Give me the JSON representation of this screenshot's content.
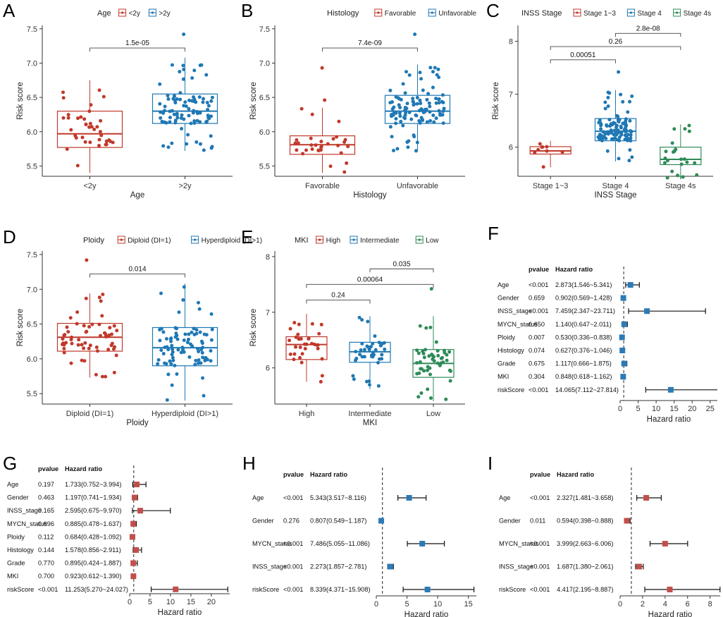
{
  "colors": {
    "red": "#c0392b",
    "blue": "#1f78b4",
    "green": "#2e8b57",
    "fp_blue": "#2c7bb6",
    "fp_red": "#c0504d"
  },
  "chart_data": [
    {
      "id": "A",
      "type": "box",
      "letter": "A",
      "legend_title": "Age",
      "legend": [
        "<2y",
        ">2y"
      ],
      "categories": [
        "<2y",
        ">2y"
      ],
      "xlabel": "Age",
      "ylabel": "Risk score",
      "ylim": [
        5.35,
        7.55
      ],
      "yticks": [
        "5.5",
        "6.0",
        "6.5",
        "7.0",
        "7.5"
      ],
      "ytick_values": [
        5.5,
        6.0,
        6.5,
        7.0,
        7.5
      ],
      "boxes": [
        {
          "q1": 5.77,
          "med": 5.97,
          "q3": 6.3,
          "lo": 5.4,
          "hi": 6.75,
          "n": 38,
          "color": "red"
        },
        {
          "q1": 6.12,
          "med": 6.3,
          "q3": 6.55,
          "lo": 5.72,
          "hi": 7.08,
          "outliers": [
            7.42
          ],
          "n": 92,
          "color": "blue"
        }
      ],
      "comparisons": [
        {
          "from": 0,
          "to": 1,
          "label": "1.5e-05",
          "y": 7.22
        }
      ]
    },
    {
      "id": "B",
      "type": "box",
      "letter": "B",
      "legend_title": "Histology",
      "legend": [
        "Favorable",
        "Unfavorable"
      ],
      "categories": [
        "Favorable",
        "Unfavorable"
      ],
      "xlabel": "Histology",
      "ylabel": "Risk score",
      "ylim": [
        5.35,
        7.55
      ],
      "yticks": [
        "5.5",
        "6.0",
        "6.5",
        "7.0",
        "7.5"
      ],
      "ytick_values": [
        5.5,
        6.0,
        6.5,
        7.0,
        7.5
      ],
      "boxes": [
        {
          "q1": 5.67,
          "med": 5.81,
          "q3": 5.94,
          "lo": 5.4,
          "hi": 6.35,
          "outliers": [
            6.46,
            6.93
          ],
          "n": 30,
          "color": "red"
        },
        {
          "q1": 6.12,
          "med": 6.3,
          "q3": 6.53,
          "lo": 5.72,
          "hi": 6.98,
          "outliers": [
            7.42
          ],
          "n": 105,
          "color": "blue"
        }
      ],
      "comparisons": [
        {
          "from": 0,
          "to": 1,
          "label": "7.4e-09",
          "y": 7.22
        }
      ]
    },
    {
      "id": "C",
      "type": "box",
      "letter": "C",
      "legend_title": "INSS Stage",
      "legend": [
        "Stage 1~3",
        "Stage 4",
        "Stage 4s"
      ],
      "categories": [
        "Stage 1~3",
        "Stage 4",
        "Stage 4s"
      ],
      "xlabel": "INSS Stage",
      "ylabel": "Risk score",
      "ylim": [
        5.45,
        8.3
      ],
      "yticks": [
        "6",
        "7",
        "8"
      ],
      "ytick_values": [
        6,
        7,
        8
      ],
      "boxes": [
        {
          "q1": 5.87,
          "med": 5.93,
          "q3": 6.01,
          "lo": 5.62,
          "hi": 6.12,
          "n": 9,
          "color": "red"
        },
        {
          "q1": 6.12,
          "med": 6.3,
          "q3": 6.54,
          "lo": 5.73,
          "hi": 7.08,
          "outliers": [
            7.42
          ],
          "n": 100,
          "color": "blue"
        },
        {
          "q1": 5.67,
          "med": 5.77,
          "q3": 6.0,
          "lo": 5.4,
          "hi": 6.43,
          "n": 22,
          "color": "green"
        }
      ],
      "comparisons": [
        {
          "from": 0,
          "to": 1,
          "label": "0.00051",
          "y": 7.65
        },
        {
          "from": 0,
          "to": 2,
          "label": "0.26",
          "y": 7.9
        },
        {
          "from": 1,
          "to": 2,
          "label": "2.8e-08",
          "y": 8.15
        }
      ]
    },
    {
      "id": "D",
      "type": "box",
      "letter": "D",
      "legend_title": "Ploidy",
      "legend": [
        "Diploid (DI=1)",
        "Hyperdiploid (DI>1)"
      ],
      "categories": [
        "Diploid (DI=1)",
        "Hyperdiploid (DI>1)"
      ],
      "xlabel": "Ploidy",
      "ylabel": "Risk score",
      "ylim": [
        5.35,
        7.55
      ],
      "yticks": [
        "5.5",
        "6.0",
        "6.5",
        "7.0",
        "7.5"
      ],
      "ytick_values": [
        5.5,
        6.0,
        6.5,
        7.0,
        7.5
      ],
      "boxes": [
        {
          "q1": 6.11,
          "med": 6.31,
          "q3": 6.51,
          "lo": 5.73,
          "hi": 6.94,
          "outliers": [
            7.42
          ],
          "n": 60,
          "color": "red"
        },
        {
          "q1": 5.9,
          "med": 6.16,
          "q3": 6.45,
          "lo": 5.4,
          "hi": 7.08,
          "n": 88,
          "color": "blue"
        }
      ],
      "comparisons": [
        {
          "from": 0,
          "to": 1,
          "label": "0.014",
          "y": 7.22
        }
      ]
    },
    {
      "id": "E",
      "type": "box",
      "letter": "E",
      "legend_title": "MKI",
      "legend": [
        "High",
        "Intermediate",
        "Low"
      ],
      "categories": [
        "High",
        "Intermediate",
        "Low"
      ],
      "xlabel": "MKI",
      "ylabel": "Risk score",
      "ylim": [
        5.35,
        8.1
      ],
      "yticks": [
        "6",
        "7",
        "8"
      ],
      "ytick_values": [
        6,
        7,
        8
      ],
      "boxes": [
        {
          "q1": 6.15,
          "med": 6.42,
          "q3": 6.56,
          "lo": 5.75,
          "hi": 6.97,
          "n": 33,
          "color": "red"
        },
        {
          "q1": 6.1,
          "med": 6.29,
          "q3": 6.46,
          "lo": 5.62,
          "hi": 6.93,
          "n": 40,
          "color": "blue"
        },
        {
          "q1": 5.83,
          "med": 6.08,
          "q3": 6.33,
          "lo": 5.4,
          "hi": 6.93,
          "outliers": [
            7.42
          ],
          "n": 48,
          "color": "green"
        }
      ],
      "comparisons": [
        {
          "from": 0,
          "to": 1,
          "label": "0.24",
          "y": 7.22
        },
        {
          "from": 0,
          "to": 2,
          "label": "0.00064",
          "y": 7.5
        },
        {
          "from": 1,
          "to": 2,
          "label": "0.035",
          "y": 7.78
        }
      ]
    }
  ],
  "forest_plots": [
    {
      "id": "F",
      "letter": "F",
      "color": "fp_blue",
      "header_pvalue": "pvalue",
      "header_hr": "Hazard ratio",
      "xlabel": "Hazard ratio",
      "xlim": [
        0,
        27
      ],
      "xticks": [
        "0",
        "5",
        "10",
        "15",
        "20",
        "25"
      ],
      "xtick_values": [
        0,
        5,
        10,
        15,
        20,
        25
      ],
      "rows": [
        {
          "name": "Age",
          "p": "<0.001",
          "hr_text": "2.873(1.546~5.341)",
          "hr": 2.873,
          "lo": 1.546,
          "hi": 5.341
        },
        {
          "name": "Gender",
          "p": "0.659",
          "hr_text": "0.902(0.569~1.428)",
          "hr": 0.902,
          "lo": 0.569,
          "hi": 1.428
        },
        {
          "name": "INSS_stage",
          "p": "<0.001",
          "hr_text": "7.459(2.347~23.711)",
          "hr": 7.459,
          "lo": 2.347,
          "hi": 23.711
        },
        {
          "name": "MYCN_status",
          "p": "0.650",
          "hr_text": "1.140(0.647~2.011)",
          "hr": 1.14,
          "lo": 0.647,
          "hi": 2.011
        },
        {
          "name": "Ploidy",
          "p": "0.007",
          "hr_text": "0.530(0.336~0.838)",
          "hr": 0.53,
          "lo": 0.336,
          "hi": 0.838
        },
        {
          "name": "Histology",
          "p": "0.074",
          "hr_text": "0.627(0.376~1.046)",
          "hr": 0.627,
          "lo": 0.376,
          "hi": 1.046
        },
        {
          "name": "Grade",
          "p": "0.675",
          "hr_text": "1.117(0.666~1.875)",
          "hr": 1.117,
          "lo": 0.666,
          "hi": 1.875
        },
        {
          "name": "MKI",
          "p": "0.304",
          "hr_text": "0.848(0.618~1.162)",
          "hr": 0.848,
          "lo": 0.618,
          "hi": 1.162
        },
        {
          "name": "riskScore",
          "p": "<0.001",
          "hr_text": "14.065(7.112~27.814)",
          "hr": 14.065,
          "lo": 7.112,
          "hi": 27.814
        }
      ]
    },
    {
      "id": "G",
      "letter": "G",
      "color": "fp_red",
      "header_pvalue": "pvalue",
      "header_hr": "Hazard ratio",
      "xlabel": "Hazard ratio",
      "xlim": [
        0,
        24.5
      ],
      "xticks": [
        "0",
        "5",
        "10",
        "15",
        "20"
      ],
      "xtick_values": [
        0,
        5,
        10,
        15,
        20
      ],
      "rows": [
        {
          "name": "Age",
          "p": "0.197",
          "hr_text": "1.733(0.752~3.994)",
          "hr": 1.733,
          "lo": 0.752,
          "hi": 3.994
        },
        {
          "name": "Gender",
          "p": "0.463",
          "hr_text": "1.197(0.741~1.934)",
          "hr": 1.197,
          "lo": 0.741,
          "hi": 1.934
        },
        {
          "name": "INSS_stage",
          "p": "0.165",
          "hr_text": "2.595(0.675~9.970)",
          "hr": 2.595,
          "lo": 0.675,
          "hi": 9.97
        },
        {
          "name": "MYCN_status",
          "p": "0.696",
          "hr_text": "0.885(0.478~1.637)",
          "hr": 0.885,
          "lo": 0.478,
          "hi": 1.637
        },
        {
          "name": "Ploidy",
          "p": "0.112",
          "hr_text": "0.684(0.428~1.092)",
          "hr": 0.684,
          "lo": 0.428,
          "hi": 1.092
        },
        {
          "name": "Histology",
          "p": "0.144",
          "hr_text": "1.578(0.856~2.911)",
          "hr": 1.578,
          "lo": 0.856,
          "hi": 2.911
        },
        {
          "name": "Grade",
          "p": "0.770",
          "hr_text": "0.895(0.424~1.887)",
          "hr": 0.895,
          "lo": 0.424,
          "hi": 1.887
        },
        {
          "name": "MKI",
          "p": "0.700",
          "hr_text": "0.923(0.612~1.390)",
          "hr": 0.923,
          "lo": 0.612,
          "hi": 1.39
        },
        {
          "name": "riskScore",
          "p": "<0.001",
          "hr_text": "11.253(5.270~24.027)",
          "hr": 11.253,
          "lo": 5.27,
          "hi": 24.027
        }
      ]
    },
    {
      "id": "H",
      "letter": "H",
      "color": "fp_blue",
      "header_pvalue": "pvalue",
      "header_hr": "Hazard ratio",
      "xlabel": "Hazard ratio",
      "xlim": [
        0,
        16.3
      ],
      "xticks": [
        "0",
        "5",
        "10",
        "15"
      ],
      "xtick_values": [
        0,
        5,
        10,
        15
      ],
      "rows": [
        {
          "name": "Age",
          "p": "<0.001",
          "hr_text": "5.343(3.517~8.116)",
          "hr": 5.343,
          "lo": 3.517,
          "hi": 8.116
        },
        {
          "name": "Gender",
          "p": "0.276",
          "hr_text": "0.807(0.549~1.187)",
          "hr": 0.807,
          "lo": 0.549,
          "hi": 1.187
        },
        {
          "name": "MYCN_status",
          "p": "<0.001",
          "hr_text": "7.486(5.055~11.086)",
          "hr": 7.486,
          "lo": 5.055,
          "hi": 11.086
        },
        {
          "name": "INSS_stage",
          "p": "<0.001",
          "hr_text": "2.273(1.857~2.781)",
          "hr": 2.273,
          "lo": 1.857,
          "hi": 2.781
        },
        {
          "name": "riskScore",
          "p": "<0.001",
          "hr_text": "8.339(4.371~15.908)",
          "hr": 8.339,
          "lo": 4.371,
          "hi": 15.908
        }
      ]
    },
    {
      "id": "I",
      "letter": "I",
      "color": "fp_red",
      "header_pvalue": "pvalue",
      "header_hr": "Hazard ratio",
      "xlabel": "Hazard ratio",
      "xlim": [
        0,
        8.9
      ],
      "xticks": [
        "0",
        "2",
        "4",
        "6",
        "8"
      ],
      "xtick_values": [
        0,
        2,
        4,
        6,
        8
      ],
      "rows": [
        {
          "name": "Age",
          "p": "<0.001",
          "hr_text": "2.327(1.481~3.658)",
          "hr": 2.327,
          "lo": 1.481,
          "hi": 3.658
        },
        {
          "name": "Gender",
          "p": "0.011",
          "hr_text": "0.594(0.398~0.888)",
          "hr": 0.594,
          "lo": 0.398,
          "hi": 0.888
        },
        {
          "name": "MYCN_status",
          "p": "<0.001",
          "hr_text": "3.999(2.663~6.006)",
          "hr": 3.999,
          "lo": 2.663,
          "hi": 6.006
        },
        {
          "name": "INSS_stage",
          "p": "<0.001",
          "hr_text": "1.687(1.380~2.061)",
          "hr": 1.687,
          "lo": 1.38,
          "hi": 2.061
        },
        {
          "name": "riskScore",
          "p": "<0.001",
          "hr_text": "4.417(2.195~8.887)",
          "hr": 4.417,
          "lo": 2.195,
          "hi": 8.887
        }
      ]
    }
  ]
}
